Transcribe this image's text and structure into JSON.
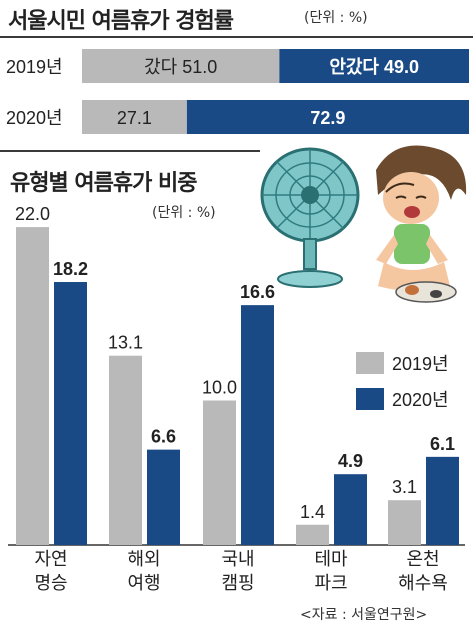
{
  "title_top": "서울시민 여름휴가 경험률",
  "unit_top": "(단위 : %)",
  "title_bottom": "유형별 여름휴가 비중",
  "unit_bottom": "(단위 : %)",
  "source": "<자료 : 서울연구원>",
  "colors": {
    "gray": "#b9b9b9",
    "navy": "#1a4a86"
  },
  "chart_data": [
    {
      "type": "bar",
      "orientation": "horizontal-stacked",
      "categories": [
        "2019년",
        "2020년"
      ],
      "series": [
        {
          "name": "갔다",
          "values": [
            51.0,
            27.1
          ],
          "labels": [
            "갔다 51.0",
            "27.1"
          ]
        },
        {
          "name": "안갔다",
          "values": [
            49.0,
            72.9
          ],
          "labels": [
            "안갔다 49.0",
            "72.9"
          ]
        }
      ],
      "title": "서울시민 여름휴가 경험률",
      "xlim": [
        0,
        100
      ]
    },
    {
      "type": "bar",
      "orientation": "vertical-grouped",
      "categories": [
        "자연\n명승",
        "해외\n여행",
        "국내\n캠핑",
        "테마\n파크",
        "온천\n해수욕"
      ],
      "series": [
        {
          "name": "2019년",
          "values": [
            22.0,
            13.1,
            10.0,
            1.4,
            3.1
          ],
          "labels": [
            "22.0",
            "13.1",
            "10.0",
            "1.4",
            "3.1"
          ]
        },
        {
          "name": "2020년",
          "values": [
            18.2,
            6.6,
            16.6,
            4.9,
            6.1
          ],
          "labels": [
            "18.2",
            "6.6",
            "16.6",
            "4.9",
            "6.1"
          ]
        }
      ],
      "legend": "right",
      "title": "유형별 여름휴가 비중"
    }
  ]
}
